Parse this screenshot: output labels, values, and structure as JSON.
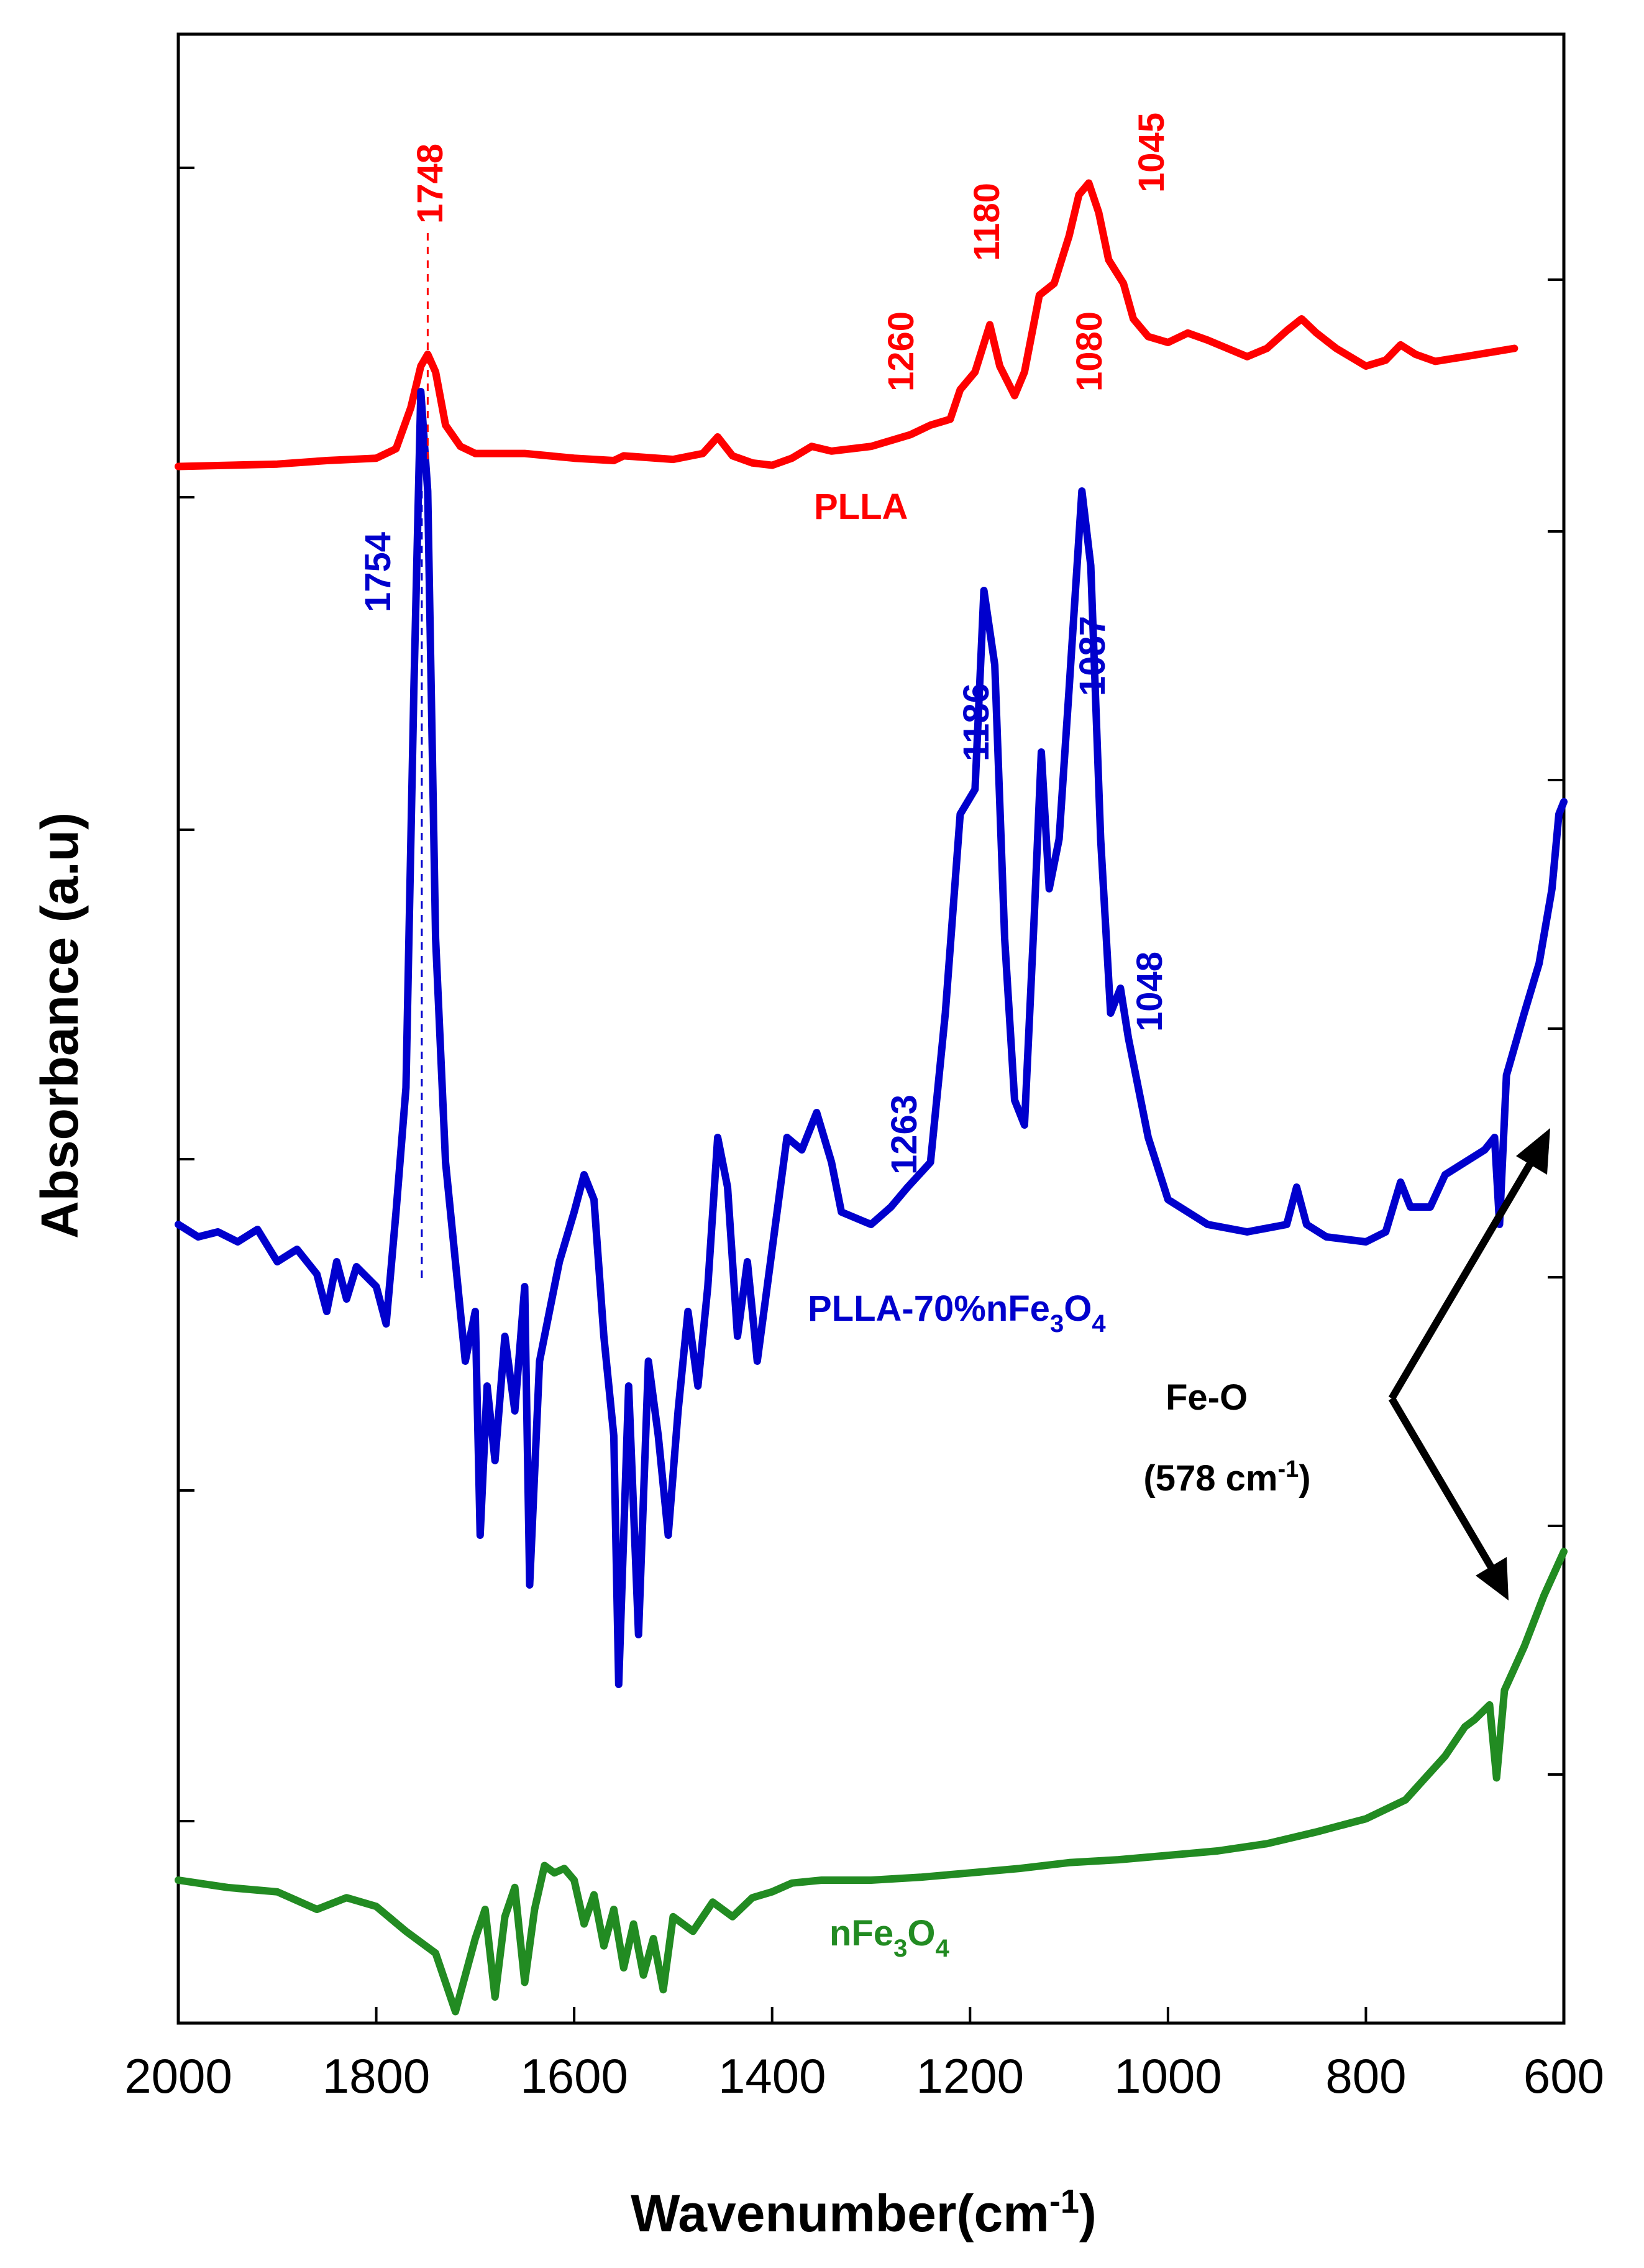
{
  "chart_data": {
    "type": "line",
    "xlabel": "Wavenumber(cm",
    "xlabel_sup": "-1",
    "xlabel_close": ")",
    "ylabel": "Absorbance (a.u)",
    "xlim": [
      2000,
      600
    ],
    "x_reversed": true,
    "x_ticks": [
      2000,
      1800,
      1600,
      1400,
      1200,
      1000,
      800,
      600
    ],
    "y_ticks": "unlabeled",
    "legend": "inline labels",
    "series": [
      {
        "name": "PLLA",
        "color": "#ff0000",
        "points": [
          [
            2000,
            0.05
          ],
          [
            1950,
            0.06
          ],
          [
            1900,
            0.07
          ],
          [
            1850,
            0.1
          ],
          [
            1800,
            0.12
          ],
          [
            1780,
            0.2
          ],
          [
            1765,
            0.55
          ],
          [
            1755,
            0.9
          ],
          [
            1748,
            1.0
          ],
          [
            1740,
            0.85
          ],
          [
            1730,
            0.4
          ],
          [
            1715,
            0.22
          ],
          [
            1700,
            0.16
          ],
          [
            1650,
            0.16
          ],
          [
            1600,
            0.12
          ],
          [
            1560,
            0.1
          ],
          [
            1550,
            0.14
          ],
          [
            1500,
            0.11
          ],
          [
            1470,
            0.16
          ],
          [
            1455,
            0.3
          ],
          [
            1440,
            0.14
          ],
          [
            1420,
            0.08
          ],
          [
            1400,
            0.06
          ],
          [
            1380,
            0.12
          ],
          [
            1360,
            0.22
          ],
          [
            1340,
            0.18
          ],
          [
            1300,
            0.22
          ],
          [
            1260,
            0.32
          ],
          [
            1240,
            0.4
          ],
          [
            1220,
            0.45
          ],
          [
            1210,
            0.7
          ],
          [
            1195,
            0.85
          ],
          [
            1180,
            1.25
          ],
          [
            1170,
            0.9
          ],
          [
            1155,
            0.65
          ],
          [
            1145,
            0.85
          ],
          [
            1130,
            1.5
          ],
          [
            1115,
            1.6
          ],
          [
            1100,
            2.0
          ],
          [
            1090,
            2.35
          ],
          [
            1080,
            2.45
          ],
          [
            1070,
            2.2
          ],
          [
            1060,
            1.8
          ],
          [
            1045,
            1.6
          ],
          [
            1035,
            1.3
          ],
          [
            1020,
            1.15
          ],
          [
            1000,
            1.1
          ],
          [
            980,
            1.18
          ],
          [
            960,
            1.12
          ],
          [
            940,
            1.05
          ],
          [
            920,
            0.98
          ],
          [
            900,
            1.05
          ],
          [
            880,
            1.2
          ],
          [
            865,
            1.3
          ],
          [
            850,
            1.18
          ],
          [
            830,
            1.05
          ],
          [
            800,
            0.9
          ],
          [
            780,
            0.95
          ],
          [
            765,
            1.08
          ],
          [
            750,
            1.0
          ],
          [
            730,
            0.94
          ],
          [
            700,
            0.98
          ],
          [
            650,
            1.05
          ]
        ]
      },
      {
        "name": "PLLA-70%nFe",
        "name_parts": [
          "PLLA-70%nFe",
          "3",
          "O",
          "4"
        ],
        "color": "#0000cd",
        "points": [
          [
            2000,
            0.05
          ],
          [
            1980,
            0.0
          ],
          [
            1960,
            0.02
          ],
          [
            1940,
            -0.02
          ],
          [
            1920,
            0.03
          ],
          [
            1900,
            -0.1
          ],
          [
            1880,
            -0.05
          ],
          [
            1860,
            -0.15
          ],
          [
            1850,
            -0.3
          ],
          [
            1840,
            -0.1
          ],
          [
            1830,
            -0.25
          ],
          [
            1820,
            -0.12
          ],
          [
            1800,
            -0.2
          ],
          [
            1790,
            -0.35
          ],
          [
            1780,
            0.1
          ],
          [
            1770,
            0.6
          ],
          [
            1762,
            2.2
          ],
          [
            1755,
            3.4
          ],
          [
            1748,
            3.0
          ],
          [
            1740,
            1.2
          ],
          [
            1730,
            0.3
          ],
          [
            1720,
            -0.1
          ],
          [
            1710,
            -0.5
          ],
          [
            1700,
            -0.3
          ],
          [
            1695,
            -1.2
          ],
          [
            1688,
            -0.6
          ],
          [
            1680,
            -0.9
          ],
          [
            1670,
            -0.4
          ],
          [
            1660,
            -0.7
          ],
          [
            1650,
            -0.2
          ],
          [
            1645,
            -1.4
          ],
          [
            1635,
            -0.5
          ],
          [
            1625,
            -0.3
          ],
          [
            1615,
            -0.1
          ],
          [
            1600,
            0.1
          ],
          [
            1590,
            0.25
          ],
          [
            1580,
            0.15
          ],
          [
            1570,
            -0.4
          ],
          [
            1560,
            -0.8
          ],
          [
            1555,
            -1.8
          ],
          [
            1545,
            -0.6
          ],
          [
            1535,
            -1.6
          ],
          [
            1525,
            -0.5
          ],
          [
            1515,
            -0.8
          ],
          [
            1505,
            -1.2
          ],
          [
            1495,
            -0.7
          ],
          [
            1485,
            -0.3
          ],
          [
            1475,
            -0.6
          ],
          [
            1465,
            -0.2
          ],
          [
            1455,
            0.4
          ],
          [
            1445,
            0.2
          ],
          [
            1435,
            -0.4
          ],
          [
            1425,
            -0.1
          ],
          [
            1415,
            -0.5
          ],
          [
            1405,
            -0.2
          ],
          [
            1395,
            0.1
          ],
          [
            1385,
            0.4
          ],
          [
            1370,
            0.35
          ],
          [
            1355,
            0.5
          ],
          [
            1340,
            0.3
          ],
          [
            1330,
            0.1
          ],
          [
            1300,
            0.05
          ],
          [
            1280,
            0.12
          ],
          [
            1263,
            0.2
          ],
          [
            1240,
            0.3
          ],
          [
            1225,
            0.9
          ],
          [
            1210,
            1.7
          ],
          [
            1195,
            1.8
          ],
          [
            1186,
            2.6
          ],
          [
            1175,
            2.3
          ],
          [
            1165,
            1.2
          ],
          [
            1155,
            0.55
          ],
          [
            1145,
            0.45
          ],
          [
            1135,
            1.3
          ],
          [
            1128,
            1.95
          ],
          [
            1120,
            1.4
          ],
          [
            1110,
            1.6
          ],
          [
            1100,
            2.2
          ],
          [
            1087,
            3.0
          ],
          [
            1078,
            2.7
          ],
          [
            1068,
            1.6
          ],
          [
            1058,
            0.9
          ],
          [
            1048,
            1.0
          ],
          [
            1040,
            0.8
          ],
          [
            1020,
            0.4
          ],
          [
            1000,
            0.15
          ],
          [
            960,
            0.05
          ],
          [
            920,
            0.02
          ],
          [
            880,
            0.05
          ],
          [
            870,
            0.2
          ],
          [
            860,
            0.05
          ],
          [
            840,
            0.0
          ],
          [
            800,
            -0.02
          ],
          [
            780,
            0.02
          ],
          [
            765,
            0.22
          ],
          [
            755,
            0.12
          ],
          [
            735,
            0.12
          ],
          [
            720,
            0.25
          ],
          [
            700,
            0.3
          ],
          [
            680,
            0.35
          ],
          [
            670,
            0.4
          ],
          [
            665,
            0.05
          ],
          [
            658,
            0.65
          ],
          [
            640,
            0.9
          ],
          [
            625,
            1.1
          ],
          [
            612,
            1.4
          ],
          [
            605,
            1.7
          ],
          [
            600,
            1.75
          ]
        ]
      },
      {
        "name": "nFe",
        "name_parts": [
          "nFe",
          "3",
          "O",
          "4"
        ],
        "color": "#228b22",
        "points": [
          [
            2000,
            0.0
          ],
          [
            1950,
            -0.05
          ],
          [
            1900,
            -0.08
          ],
          [
            1860,
            -0.2
          ],
          [
            1830,
            -0.12
          ],
          [
            1800,
            -0.18
          ],
          [
            1770,
            -0.35
          ],
          [
            1740,
            -0.5
          ],
          [
            1720,
            -0.9
          ],
          [
            1700,
            -0.4
          ],
          [
            1690,
            -0.2
          ],
          [
            1680,
            -0.8
          ],
          [
            1670,
            -0.25
          ],
          [
            1660,
            -0.05
          ],
          [
            1650,
            -0.7
          ],
          [
            1640,
            -0.2
          ],
          [
            1630,
            0.1
          ],
          [
            1620,
            0.05
          ],
          [
            1610,
            0.08
          ],
          [
            1600,
            0.0
          ],
          [
            1590,
            -0.3
          ],
          [
            1580,
            -0.1
          ],
          [
            1570,
            -0.45
          ],
          [
            1560,
            -0.2
          ],
          [
            1550,
            -0.6
          ],
          [
            1540,
            -0.3
          ],
          [
            1530,
            -0.65
          ],
          [
            1520,
            -0.4
          ],
          [
            1510,
            -0.75
          ],
          [
            1500,
            -0.25
          ],
          [
            1480,
            -0.35
          ],
          [
            1460,
            -0.15
          ],
          [
            1440,
            -0.25
          ],
          [
            1420,
            -0.12
          ],
          [
            1400,
            -0.08
          ],
          [
            1380,
            -0.02
          ],
          [
            1350,
            0.0
          ],
          [
            1300,
            0.0
          ],
          [
            1250,
            0.02
          ],
          [
            1200,
            0.05
          ],
          [
            1150,
            0.08
          ],
          [
            1100,
            0.12
          ],
          [
            1050,
            0.14
          ],
          [
            1000,
            0.17
          ],
          [
            950,
            0.2
          ],
          [
            900,
            0.25
          ],
          [
            850,
            0.33
          ],
          [
            800,
            0.42
          ],
          [
            760,
            0.55
          ],
          [
            740,
            0.7
          ],
          [
            720,
            0.85
          ],
          [
            700,
            1.05
          ],
          [
            690,
            1.1
          ],
          [
            675,
            1.2
          ],
          [
            668,
            0.7
          ],
          [
            660,
            1.3
          ],
          [
            640,
            1.6
          ],
          [
            620,
            1.95
          ],
          [
            600,
            2.25
          ]
        ]
      }
    ],
    "annotations": {
      "plla_peaks": [
        "1748",
        "1260",
        "1180",
        "1080",
        "1045"
      ],
      "composite_peaks": [
        "1754",
        "1263",
        "1186",
        "1087",
        "1048"
      ],
      "fe_o_label": "Fe-O",
      "fe_o_position_text": "(578 cm",
      "fe_o_position_sup": "-1",
      "fe_o_position_close": ")"
    }
  }
}
